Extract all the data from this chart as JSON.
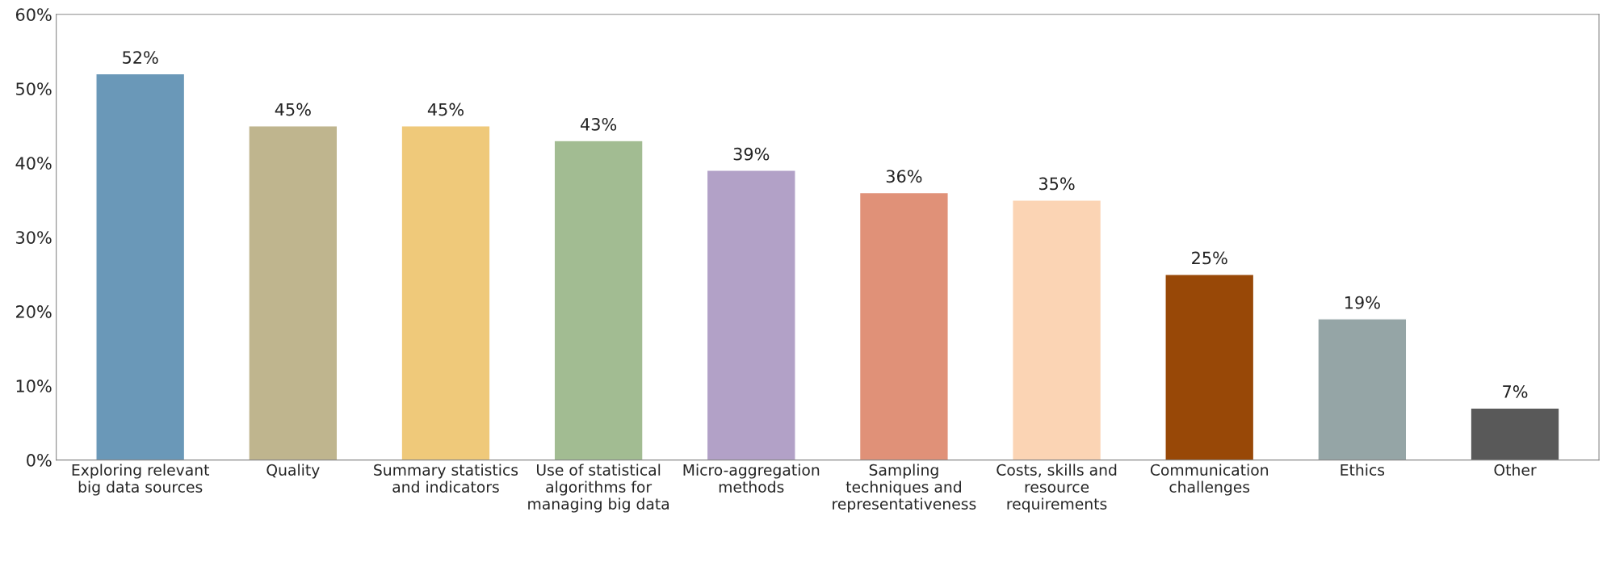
{
  "chart_data": {
    "type": "bar",
    "categories": [
      "Exploring relevant\nbig data sources",
      "Quality",
      "Summary statistics\nand indicators",
      "Use of statistical\nalgorithms for\nmanaging big data",
      "Micro-aggregation\nmethods",
      "Sampling\ntechniques and\nrepresentativeness",
      "Costs, skills and\nresource\nrequirements",
      "Communication\nchallenges",
      "Ethics",
      "Other"
    ],
    "values": [
      52,
      45,
      45,
      43,
      39,
      36,
      35,
      25,
      19,
      7
    ],
    "colors": [
      "#6a98b8",
      "#bfb58e",
      "#efc97a",
      "#a2bc92",
      "#b2a1c7",
      "#e09178",
      "#fbd4b4",
      "#984807",
      "#95a5a6",
      "#595959"
    ],
    "value_labels": [
      "52%",
      "45%",
      "45%",
      "43%",
      "39%",
      "36%",
      "35%",
      "25%",
      "19%",
      "7%"
    ],
    "ylim": [
      0,
      60
    ],
    "yticks": [
      {
        "value": 0,
        "label": "0%"
      },
      {
        "value": 10,
        "label": "10%"
      },
      {
        "value": 20,
        "label": "20%"
      },
      {
        "value": 30,
        "label": "30%"
      },
      {
        "value": 40,
        "label": "40%"
      },
      {
        "value": 50,
        "label": "50%"
      },
      {
        "value": 60,
        "label": "60%"
      }
    ],
    "grid": false
  }
}
